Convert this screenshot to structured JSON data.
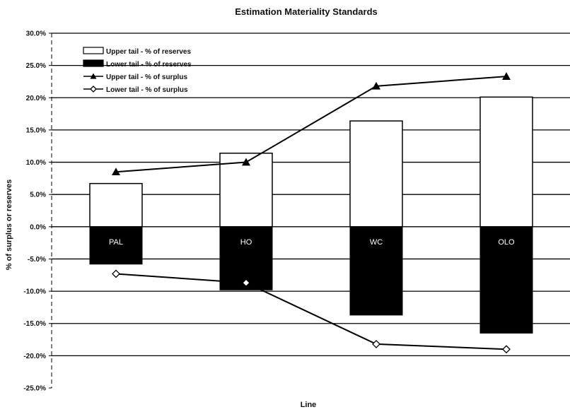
{
  "chart_data": {
    "type": "bar",
    "title": "Estimation Materiality Standards",
    "xlabel": "Line",
    "ylabel": "% of surplus or reserves",
    "categories": [
      "PAL",
      "HO",
      "WC",
      "OLO"
    ],
    "ylim": [
      -25,
      30
    ],
    "yticks": [
      30,
      25,
      20,
      15,
      10,
      5,
      0,
      -5,
      -10,
      -15,
      -20,
      -25
    ],
    "ytick_labels": [
      "30.0%",
      "25.0%",
      "20.0%",
      "15.0%",
      "10.0%",
      "5.0%",
      "0.0%",
      "-5.0%",
      "-10.0%",
      "-15.0%",
      "-20.0%",
      "-25.0%"
    ],
    "grid": true,
    "legend_position": "top-left",
    "series": [
      {
        "name": "Upper tail - % of reserves",
        "kind": "bar",
        "values": [
          6.7,
          11.4,
          16.4,
          20.1
        ],
        "color": "#ffffff"
      },
      {
        "name": "Lower tail - % of reserves",
        "kind": "bar",
        "values": [
          -5.8,
          -9.8,
          -13.7,
          -16.5
        ],
        "color": "#000000"
      },
      {
        "name": "Upper tail - % of surplus",
        "kind": "line",
        "marker": "triangle",
        "values": [
          8.5,
          10.0,
          21.8,
          23.3
        ],
        "color": "#000000"
      },
      {
        "name": "Lower tail - % of surplus",
        "kind": "line",
        "marker": "diamond",
        "values": [
          -7.3,
          -8.7,
          -18.2,
          -19.0
        ],
        "color": "#000000"
      }
    ]
  }
}
